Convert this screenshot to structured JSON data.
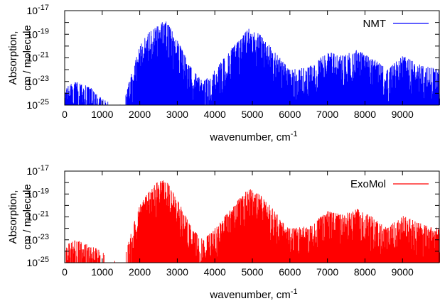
{
  "chart_data": [
    {
      "type": "line",
      "series": [
        {
          "name": "NMT",
          "color": "#0000ff"
        }
      ],
      "xlabel": "wavenumber, cm",
      "xlabel_sup": "-1",
      "ylabel_lines": [
        "Absorption,",
        "cm / molecule"
      ],
      "xlim": [
        0,
        9999
      ],
      "ylim_exponent": [
        -25,
        -17
      ],
      "yscale": "log",
      "x_ticks": [
        0,
        1000,
        2000,
        3000,
        4000,
        5000,
        6000,
        7000,
        8000,
        9000
      ],
      "y_ticks": [
        {
          "base": "10",
          "exp": "-25"
        },
        {
          "base": "10",
          "exp": "-23"
        },
        {
          "base": "10",
          "exp": "-21"
        },
        {
          "base": "10",
          "exp": "-19"
        },
        {
          "base": "10",
          "exp": "-17"
        }
      ],
      "legend_position": "top-right",
      "envelope": [
        [
          0,
          -23.5
        ],
        [
          300,
          -23.0
        ],
        [
          700,
          -23.5
        ],
        [
          1000,
          -24.5
        ],
        [
          1400,
          -25
        ],
        [
          1600,
          -24.5
        ],
        [
          1800,
          -22.0
        ],
        [
          2000,
          -20.0
        ],
        [
          2200,
          -19.0
        ],
        [
          2450,
          -18.2
        ],
        [
          2700,
          -17.8
        ],
        [
          3000,
          -19.5
        ],
        [
          3400,
          -22.0
        ],
        [
          3700,
          -23.0
        ],
        [
          4000,
          -22.0
        ],
        [
          4500,
          -20.0
        ],
        [
          4900,
          -18.5
        ],
        [
          5200,
          -19.0
        ],
        [
          5600,
          -20.5
        ],
        [
          6000,
          -22.0
        ],
        [
          6500,
          -21.8
        ],
        [
          7000,
          -20.5
        ],
        [
          7400,
          -20.8
        ],
        [
          7800,
          -20.3
        ],
        [
          8200,
          -21.0
        ],
        [
          8600,
          -22.0
        ],
        [
          9000,
          -20.8
        ],
        [
          9400,
          -21.5
        ],
        [
          9999,
          -22.0
        ]
      ]
    },
    {
      "type": "line",
      "series": [
        {
          "name": "ExoMol",
          "color": "#ff0000"
        }
      ],
      "xlabel": "wavenumber, cm",
      "xlabel_sup": "-1",
      "ylabel_lines": [
        "Absorption,",
        "cm / molecule"
      ],
      "xlim": [
        0,
        9999
      ],
      "ylim_exponent": [
        -25,
        -17
      ],
      "yscale": "log",
      "x_ticks": [
        0,
        1000,
        2000,
        3000,
        4000,
        5000,
        6000,
        7000,
        8000,
        9000
      ],
      "y_ticks": [
        {
          "base": "10",
          "exp": "-25"
        },
        {
          "base": "10",
          "exp": "-23"
        },
        {
          "base": "10",
          "exp": "-21"
        },
        {
          "base": "10",
          "exp": "-19"
        },
        {
          "base": "10",
          "exp": "-17"
        }
      ],
      "legend_position": "top-right",
      "envelope": [
        [
          0,
          -23.5
        ],
        [
          300,
          -23.0
        ],
        [
          700,
          -23.5
        ],
        [
          1000,
          -24.0
        ],
        [
          1400,
          -25
        ],
        [
          1600,
          -24.5
        ],
        [
          1800,
          -22.0
        ],
        [
          2000,
          -20.0
        ],
        [
          2200,
          -19.0
        ],
        [
          2450,
          -18.0
        ],
        [
          2700,
          -17.7
        ],
        [
          3000,
          -19.5
        ],
        [
          3400,
          -22.0
        ],
        [
          3700,
          -23.0
        ],
        [
          4000,
          -22.0
        ],
        [
          4500,
          -20.0
        ],
        [
          4900,
          -18.5
        ],
        [
          5200,
          -19.0
        ],
        [
          5600,
          -20.5
        ],
        [
          6000,
          -22.0
        ],
        [
          6500,
          -21.8
        ],
        [
          7000,
          -20.5
        ],
        [
          7400,
          -20.8
        ],
        [
          7800,
          -20.3
        ],
        [
          8200,
          -21.0
        ],
        [
          8600,
          -22.0
        ],
        [
          9000,
          -20.8
        ],
        [
          9400,
          -21.5
        ],
        [
          9999,
          -22.0
        ]
      ]
    }
  ]
}
